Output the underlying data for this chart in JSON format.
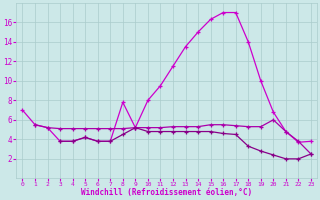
{
  "xlabel": "Windchill (Refroidissement éolien,°C)",
  "background_color": "#cce8e8",
  "grid_color": "#aacccc",
  "line_color_1": "#cc00cc",
  "line_color_2": "#aa00aa",
  "line_color_3": "#880088",
  "x_ticks": [
    0,
    1,
    2,
    3,
    4,
    5,
    6,
    7,
    8,
    9,
    10,
    11,
    12,
    13,
    14,
    15,
    16,
    17,
    18,
    19,
    20,
    21,
    22,
    23
  ],
  "ylim": [
    0,
    18
  ],
  "yticks": [
    2,
    4,
    6,
    8,
    10,
    12,
    14,
    16
  ],
  "line1_x": [
    0,
    1,
    2,
    3,
    4,
    5,
    6,
    7,
    8,
    9,
    10,
    11,
    12,
    13,
    14,
    15,
    16,
    17,
    18,
    19,
    20,
    21,
    22,
    23
  ],
  "line1_y": [
    7.0,
    5.5,
    5.2,
    3.8,
    3.8,
    4.2,
    3.8,
    3.8,
    7.8,
    5.2,
    8.0,
    9.5,
    11.5,
    13.5,
    15.0,
    16.3,
    17.0,
    17.0,
    14.0,
    10.0,
    6.8,
    4.8,
    3.7,
    3.8
  ],
  "line2_x": [
    1,
    2,
    3,
    4,
    5,
    6,
    7,
    8,
    9,
    10,
    11,
    12,
    13,
    14,
    15,
    16,
    17,
    18,
    19,
    20,
    21,
    22,
    23
  ],
  "line2_y": [
    5.5,
    5.2,
    5.1,
    5.1,
    5.1,
    5.1,
    5.1,
    5.1,
    5.2,
    5.2,
    5.2,
    5.3,
    5.3,
    5.3,
    5.5,
    5.5,
    5.4,
    5.3,
    5.3,
    6.0,
    4.8,
    3.8,
    2.5
  ],
  "line3_x": [
    3,
    4,
    5,
    6,
    7,
    8,
    9,
    10,
    11,
    12,
    13,
    14,
    15,
    16,
    17,
    18,
    19,
    20,
    21,
    22,
    23
  ],
  "line3_y": [
    3.8,
    3.8,
    4.2,
    3.8,
    3.8,
    4.5,
    5.2,
    4.8,
    4.8,
    4.8,
    4.8,
    4.8,
    4.8,
    4.6,
    4.5,
    3.3,
    2.8,
    2.4,
    2.0,
    2.0,
    2.5
  ]
}
